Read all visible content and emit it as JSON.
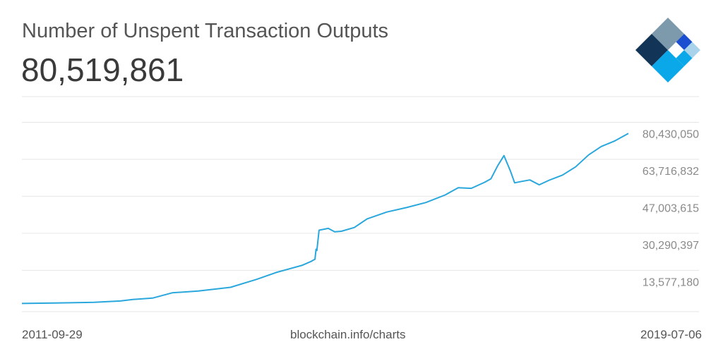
{
  "header": {
    "title": "Number of Unspent Transaction Outputs",
    "current_value": "80,519,861"
  },
  "footer": {
    "start_date": "2011-09-29",
    "source": "blockchain.info/charts",
    "end_date": "2019-07-06"
  },
  "colors": {
    "line": "#2aa7dc",
    "grid": "#e6e6e6",
    "axis_text": "#8a8a8a",
    "logo_dark": "#123456",
    "logo_gray": "#7c9aab",
    "logo_blue": "#1c4fcf",
    "logo_cyan": "#0aa8e8",
    "logo_light": "#a9d3ea"
  },
  "logo_icon": "blockchain-logo-icon",
  "chart_data": {
    "type": "line",
    "title": "Number of Unspent Transaction Outputs",
    "xlabel": "",
    "ylabel": "",
    "x_range": [
      "2011-09-29",
      "2019-07-06"
    ],
    "ylim": [
      0,
      97143268
    ],
    "y_ticks": [
      13577180,
      30290397,
      47003615,
      63716832,
      80430050
    ],
    "y_tick_labels": [
      "13,577,180",
      "30,290,397",
      "47,003,615",
      "63,716,832",
      "80,430,050"
    ],
    "grid": true,
    "series": [
      {
        "x": [
          "2011-09-29",
          "2012-03-01",
          "2012-09-01",
          "2013-01-01",
          "2013-03-01",
          "2013-06-01",
          "2013-09-01",
          "2014-01-01",
          "2014-06-01",
          "2014-10-01",
          "2015-01-01",
          "2015-05-01",
          "2015-06-15",
          "2015-07-01",
          "2015-07-06",
          "2015-07-10",
          "2015-07-20",
          "2015-09-01",
          "2015-10-01",
          "2015-11-01",
          "2016-01-01",
          "2016-03-01",
          "2016-06-01",
          "2016-09-01",
          "2016-12-01",
          "2017-03-01",
          "2017-05-01",
          "2017-07-01",
          "2017-09-01",
          "2017-10-01",
          "2017-11-01",
          "2017-12-01",
          "2018-01-01",
          "2018-01-20",
          "2018-02-15",
          "2018-04-01",
          "2018-05-15",
          "2018-07-01",
          "2018-09-01",
          "2018-11-01",
          "2019-01-01",
          "2019-03-01",
          "2019-05-01",
          "2019-07-06"
        ],
        "y": [
          3700000,
          3900000,
          4200000,
          4800000,
          5500000,
          6100000,
          8500000,
          9300000,
          11000000,
          14600000,
          17700000,
          20900000,
          22800000,
          23700000,
          28200000,
          27600000,
          36800000,
          37600000,
          36100000,
          36300000,
          38000000,
          41900000,
          45000000,
          47000000,
          49300000,
          52700000,
          56000000,
          55700000,
          58400000,
          60000000,
          65800000,
          70500000,
          63300000,
          58200000,
          58700000,
          59500000,
          57300000,
          59400000,
          61700000,
          65400000,
          70800000,
          74600000,
          77000000,
          80519861
        ]
      }
    ]
  }
}
